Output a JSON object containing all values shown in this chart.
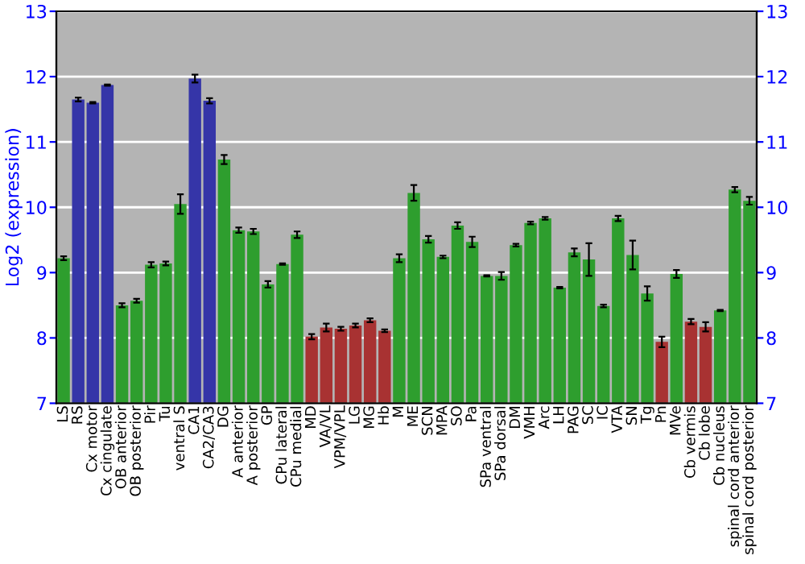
{
  "chart_data": {
    "type": "bar",
    "ylabel": "Log2 (expression)",
    "categories": [
      "LS",
      "RS",
      "Cx motor",
      "Cx cingulate",
      "OB anterior",
      "OB posterior",
      "Pir",
      "Tu",
      "ventral S",
      "CA1",
      "CA2/CA3",
      "DG",
      "A anterior",
      "A posterior",
      "GP",
      "CPu lateral",
      "CPu medial",
      "MD",
      "VA/VL",
      "VPM/VPL",
      "LG",
      "MG",
      "Hb",
      "M",
      "ME",
      "SCN",
      "MPA",
      "SO",
      "Pa",
      "SPa ventral",
      "SPa dorsal",
      "DM",
      "VMH",
      "Arc",
      "LH",
      "PAG",
      "SC",
      "IC",
      "VTA",
      "SN",
      "Tg",
      "Pn",
      "MVe",
      "Cb vermis",
      "Cb lobe",
      "Cb nucleus",
      "spinal cord anterior",
      "spinal cord posterior"
    ],
    "values": [
      9.22,
      11.65,
      11.6,
      11.87,
      8.5,
      8.57,
      9.12,
      9.14,
      10.05,
      11.97,
      11.63,
      10.73,
      9.65,
      9.63,
      8.82,
      9.13,
      9.58,
      8.02,
      8.16,
      8.14,
      8.19,
      8.27,
      8.11,
      9.22,
      10.22,
      9.51,
      9.24,
      9.72,
      9.47,
      8.95,
      8.95,
      9.42,
      9.76,
      9.83,
      8.77,
      9.31,
      9.2,
      8.49,
      9.83,
      9.27,
      8.68,
      7.94,
      8.98,
      8.25,
      8.17,
      8.42,
      10.27,
      10.1
    ],
    "errors": [
      0.03,
      0.03,
      0.01,
      0.01,
      0.03,
      0.03,
      0.04,
      0.03,
      0.15,
      0.06,
      0.04,
      0.07,
      0.04,
      0.04,
      0.05,
      0.01,
      0.05,
      0.04,
      0.06,
      0.03,
      0.03,
      0.03,
      0.02,
      0.06,
      0.12,
      0.05,
      0.02,
      0.05,
      0.08,
      0.01,
      0.06,
      0.02,
      0.02,
      0.02,
      0.01,
      0.06,
      0.25,
      0.02,
      0.04,
      0.22,
      0.11,
      0.08,
      0.06,
      0.04,
      0.07,
      0.01,
      0.04,
      0.06
    ],
    "colors": [
      "#2e9e2e",
      "#3535a8",
      "#3535a8",
      "#3535a8",
      "#2e9e2e",
      "#2e9e2e",
      "#2e9e2e",
      "#2e9e2e",
      "#2e9e2e",
      "#3535a8",
      "#3535a8",
      "#2e9e2e",
      "#2e9e2e",
      "#2e9e2e",
      "#2e9e2e",
      "#2e9e2e",
      "#2e9e2e",
      "#a83232",
      "#a83232",
      "#a83232",
      "#a83232",
      "#a83232",
      "#a83232",
      "#2e9e2e",
      "#2e9e2e",
      "#2e9e2e",
      "#2e9e2e",
      "#2e9e2e",
      "#2e9e2e",
      "#2e9e2e",
      "#2e9e2e",
      "#2e9e2e",
      "#2e9e2e",
      "#2e9e2e",
      "#2e9e2e",
      "#2e9e2e",
      "#2e9e2e",
      "#2e9e2e",
      "#2e9e2e",
      "#2e9e2e",
      "#2e9e2e",
      "#a83232",
      "#2e9e2e",
      "#a83232",
      "#a83232",
      "#2e9e2e",
      "#2e9e2e",
      "#2e9e2e"
    ],
    "ylim": [
      7,
      13
    ],
    "yticks": [
      7,
      8,
      9,
      10,
      11,
      12,
      13
    ],
    "y2lim": [
      7,
      13
    ],
    "y2ticks": [
      7,
      8,
      9,
      10,
      11,
      12,
      13
    ],
    "grid": "y",
    "legend": false
  }
}
